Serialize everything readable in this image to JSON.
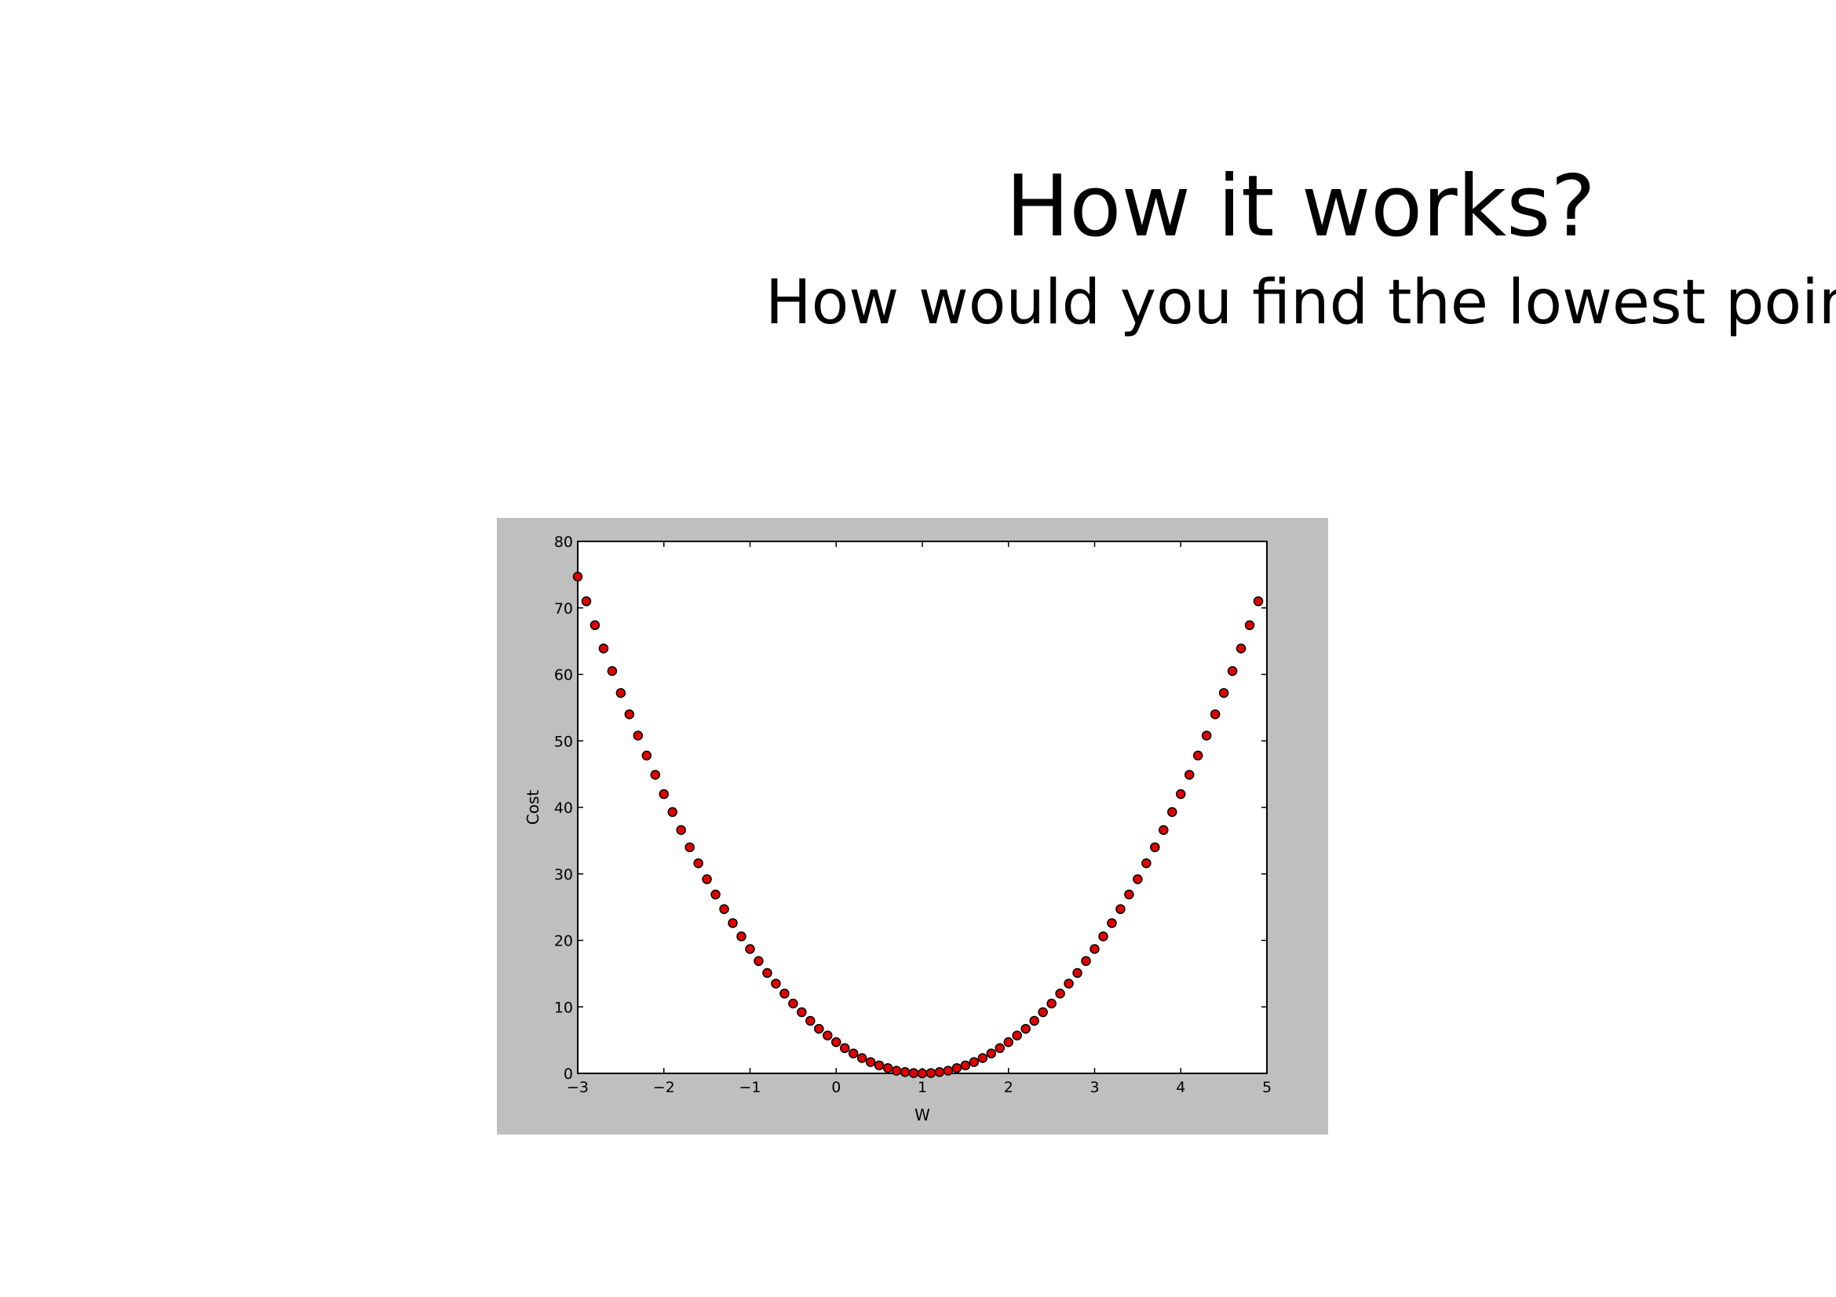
{
  "chart_data": {
    "type": "scatter",
    "title": "How it works?",
    "subtitle": "How would you find the lowest point?",
    "x_label": "W",
    "y_label": "Cost",
    "x": [
      -3,
      -2.9,
      -2.8,
      -2.7,
      -2.6,
      -2.5,
      -2.4,
      -2.3,
      -2.2,
      -2.1,
      -2,
      -1.9,
      -1.8,
      -1.7,
      -1.6,
      -1.5,
      -1.4,
      -1.3,
      -1.2,
      -1.1,
      -1,
      -0.9,
      -0.8,
      -0.7,
      -0.6,
      -0.5,
      -0.4,
      -0.3,
      -0.2,
      -0.1,
      0,
      0.1,
      0.2,
      0.3,
      0.4,
      0.5,
      0.6,
      0.7,
      0.8,
      0.9,
      1,
      1.1,
      1.2,
      1.3,
      1.4,
      1.5,
      1.6,
      1.7,
      1.8,
      1.9,
      2,
      2.1,
      2.2,
      2.3,
      2.4,
      2.5,
      2.6,
      2.7,
      2.8,
      2.9,
      3,
      3.1,
      3.2,
      3.3,
      3.4,
      3.5,
      3.6,
      3.7,
      3.8,
      3.9,
      4,
      4.1,
      4.2,
      4.3,
      4.4,
      4.5,
      4.6,
      4.7,
      4.8,
      4.9
    ],
    "values": [
      74.7,
      71,
      67.4,
      63.9,
      60.5,
      57.2,
      54,
      50.8,
      47.8,
      44.9,
      42,
      39.3,
      36.6,
      34,
      31.6,
      29.2,
      26.9,
      24.7,
      22.6,
      20.6,
      18.7,
      16.9,
      15.1,
      13.5,
      12,
      10.5,
      9.2,
      7.9,
      6.7,
      5.7,
      4.7,
      3.8,
      3,
      2.3,
      1.7,
      1.2,
      0.8,
      0.4,
      0.2,
      0.05,
      0,
      0.05,
      0.2,
      0.4,
      0.8,
      1.2,
      1.7,
      2.3,
      3,
      3.8,
      4.7,
      5.7,
      6.7,
      7.9,
      9.2,
      10.5,
      12,
      13.5,
      15.1,
      16.9,
      18.7,
      20.6,
      22.6,
      24.7,
      26.9,
      29.2,
      31.6,
      34,
      36.6,
      39.3,
      42,
      44.9,
      47.8,
      50.8,
      54,
      57.2,
      60.5,
      63.9,
      67.4,
      71
    ],
    "color": "#e00000",
    "edge_color": "#000000",
    "xlim": [
      -3,
      5
    ],
    "xticks": [
      {
        "value": -3,
        "label": "−3"
      },
      {
        "value": -2,
        "label": "−2"
      },
      {
        "value": -1,
        "label": "−1"
      },
      0,
      1,
      2,
      3,
      4,
      5
    ],
    "ylim": [
      0,
      80
    ],
    "yticks": [
      0,
      10,
      20,
      30,
      40,
      50,
      60,
      70,
      80
    ],
    "grid": false
  }
}
